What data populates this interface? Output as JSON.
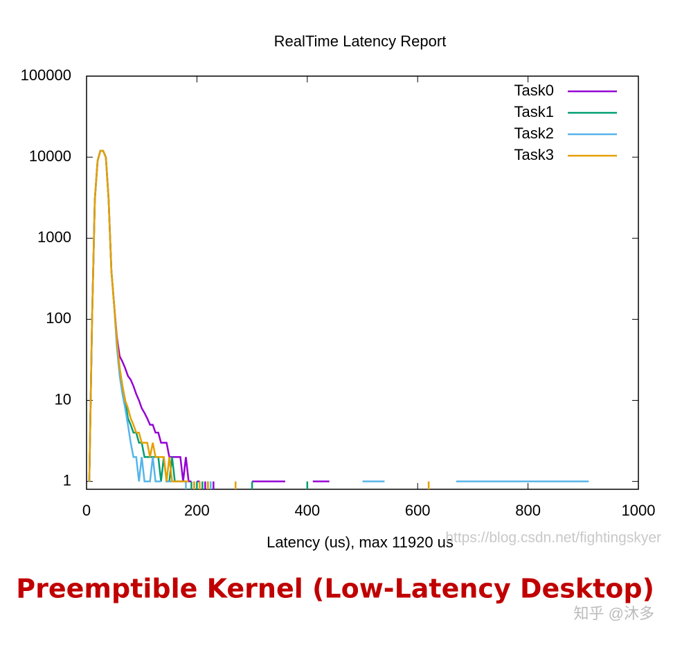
{
  "chart_data": {
    "type": "line",
    "title": "RealTime Latency Report",
    "x_label": "Latency (us), max 11920 us",
    "caption": "Preemptible Kernel (Low-Latency Desktop)",
    "watermarks": [
      "https://blog.csdn.net/fightingskyer",
      "知乎 @沐多"
    ],
    "log_y": true,
    "legend": "top-right",
    "xlim": [
      0,
      1000
    ],
    "xticks": [
      0,
      200,
      400,
      600,
      800,
      1000
    ],
    "ylim": [
      0.8,
      100000
    ],
    "yticks": [
      1,
      10,
      100,
      1000,
      10000,
      100000
    ],
    "x": [
      0,
      5,
      10,
      15,
      20,
      25,
      30,
      35,
      40,
      45,
      50,
      55,
      60,
      65,
      70,
      75,
      80,
      85,
      90,
      95,
      100,
      105,
      110,
      115,
      120,
      125,
      130,
      135,
      140,
      145,
      150,
      155,
      160,
      165,
      170,
      175,
      180,
      185,
      190,
      195,
      200,
      205,
      210,
      215,
      220,
      225,
      230,
      235,
      240,
      245,
      250,
      270,
      300,
      340,
      360,
      400,
      410,
      440,
      500,
      540,
      620,
      670,
      750,
      760,
      800,
      900,
      910
    ],
    "series": [
      {
        "name": "Task0",
        "color": "#9400d3",
        "values": [
          null,
          1,
          100,
          3000,
          9000,
          12000,
          12000,
          10000,
          3000,
          400,
          150,
          60,
          35,
          30,
          25,
          20,
          18,
          15,
          12,
          10,
          8,
          7,
          6,
          5,
          5,
          4,
          4,
          3,
          3,
          3,
          2,
          2,
          2,
          2,
          2,
          1,
          2,
          1,
          1,
          null,
          1,
          1,
          null,
          1,
          null,
          null,
          1,
          null,
          null,
          null,
          null,
          null,
          1,
          1,
          1,
          null,
          1,
          1,
          null,
          null,
          null,
          null,
          null,
          null,
          null,
          null,
          null
        ]
      },
      {
        "name": "Task1",
        "color": "#009e73",
        "values": [
          null,
          1,
          100,
          3000,
          9000,
          12000,
          12000,
          10000,
          3000,
          400,
          150,
          50,
          25,
          15,
          10,
          6,
          5,
          4,
          4,
          3,
          3,
          2,
          2,
          2,
          2,
          2,
          2,
          1,
          2,
          1,
          1,
          2,
          1,
          1,
          1,
          1,
          1,
          null,
          1,
          null,
          1,
          null,
          1,
          null,
          1,
          null,
          null,
          null,
          null,
          null,
          null,
          null,
          1,
          null,
          null,
          1,
          null,
          null,
          null,
          null,
          null,
          null,
          null,
          null,
          null,
          null,
          null
        ]
      },
      {
        "name": "Task2",
        "color": "#56b4e9",
        "values": [
          null,
          1,
          100,
          3000,
          9000,
          12000,
          12000,
          10000,
          3000,
          400,
          150,
          45,
          20,
          12,
          8,
          5,
          3,
          2,
          2,
          1,
          2,
          1,
          1,
          1,
          2,
          1,
          1,
          1,
          null,
          1,
          1,
          1,
          null,
          1,
          1,
          null,
          1,
          null,
          null,
          1,
          null,
          null,
          null,
          null,
          null,
          1,
          null,
          null,
          null,
          null,
          null,
          null,
          null,
          null,
          null,
          null,
          null,
          null,
          1,
          1,
          null,
          1,
          1,
          1,
          1,
          1,
          1
        ]
      },
      {
        "name": "Task3",
        "color": "#e69f00",
        "values": [
          null,
          1,
          100,
          3000,
          9000,
          12000,
          12000,
          10000,
          3000,
          400,
          150,
          55,
          25,
          15,
          10,
          8,
          6,
          5,
          4,
          4,
          3,
          3,
          3,
          2,
          3,
          2,
          2,
          2,
          2,
          1,
          2,
          1,
          1,
          1,
          1,
          1,
          1,
          1,
          null,
          1,
          null,
          1,
          null,
          null,
          1,
          null,
          null,
          null,
          null,
          null,
          null,
          1,
          null,
          null,
          null,
          null,
          null,
          null,
          null,
          null,
          1,
          null,
          null,
          null,
          null,
          null,
          null
        ]
      }
    ]
  }
}
